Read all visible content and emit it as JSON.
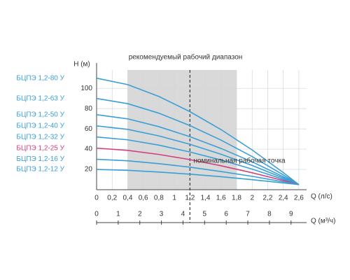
{
  "chart_data": {
    "type": "line",
    "annotation_top": "рекомендуемый рабочий диапазон",
    "annotation_point": "номинальная рабочая точка",
    "ylabel": "Н (м)",
    "xlabel": "Q (л/с)",
    "x2label": "Q (м³/ч)",
    "x": [
      0,
      0.4,
      0.8,
      1.2,
      1.6,
      2.0,
      2.4,
      2.6
    ],
    "series": [
      {
        "name": "БЦПЭ 1,2-80 У",
        "color": "#3a9fd6",
        "values": [
          110,
          103.7,
          92.0,
          77.0,
          59.3,
          39.2,
          16.9,
          5
        ]
      },
      {
        "name": "БЦПЭ 1,2-63 У",
        "color": "#3a9fd6",
        "values": [
          90,
          84.9,
          75.5,
          63.3,
          48.9,
          32.7,
          14.6,
          5
        ]
      },
      {
        "name": "БЦПЭ 1,2-50 У",
        "color": "#3a9fd6",
        "values": [
          74,
          69.9,
          62.2,
          52.3,
          40.7,
          27.5,
          12.8,
          5
        ]
      },
      {
        "name": "БЦПЭ 1,2-40 У",
        "color": "#3a9fd6",
        "values": [
          63,
          59.5,
          53.1,
          44.8,
          35.0,
          23.9,
          11.6,
          5
        ]
      },
      {
        "name": "БЦПЭ 1,2-32 У",
        "color": "#3a9fd6",
        "values": [
          52,
          49.2,
          44.0,
          37.2,
          29.3,
          20.3,
          10.3,
          5
        ]
      },
      {
        "name": "БЦПЭ 1,2-25 У",
        "color": "#d2417e",
        "values": [
          41,
          38.8,
          34.8,
          29.7,
          23.6,
          16.7,
          9.1,
          5
        ]
      },
      {
        "name": "БЦПЭ 1,2-16 У",
        "color": "#3a9fd6",
        "values": [
          30,
          28.5,
          25.7,
          22.2,
          17.9,
          13.2,
          7.8,
          5
        ]
      },
      {
        "name": "БЦПЭ 1,2-12 У",
        "color": "#3a9fd6",
        "values": [
          20,
          19.1,
          17.4,
          15.3,
          12.8,
          9.9,
          6.7,
          5
        ]
      }
    ],
    "range_band": [
      0.4,
      1.8
    ],
    "nominal_q": 1.2,
    "xlim": [
      0,
      2.7
    ],
    "xticks": [
      0,
      {
        "value": 0.2,
        "label": "0,2"
      },
      {
        "value": 0.4,
        "label": "0,4"
      },
      {
        "value": 0.6,
        "label": "0,6"
      },
      {
        "value": 0.8,
        "label": "0,8"
      },
      1,
      {
        "value": 1.2,
        "label": "1,2"
      },
      {
        "value": 1.4,
        "label": "1,4"
      },
      {
        "value": 1.6,
        "label": "1,6"
      },
      {
        "value": 1.8,
        "label": "1,8"
      },
      2,
      {
        "value": 2.2,
        "label": "2,2"
      },
      {
        "value": 2.4,
        "label": "2,4"
      },
      {
        "value": 2.6,
        "label": "2,6"
      }
    ],
    "x2lim": [
      0,
      9.72
    ],
    "x2ticks": [
      0,
      1,
      2,
      3,
      4,
      5,
      6,
      7,
      8,
      9
    ],
    "ylim": [
      0,
      125
    ],
    "yticks": [
      20,
      40,
      60,
      80,
      100
    ],
    "grid": true
  }
}
